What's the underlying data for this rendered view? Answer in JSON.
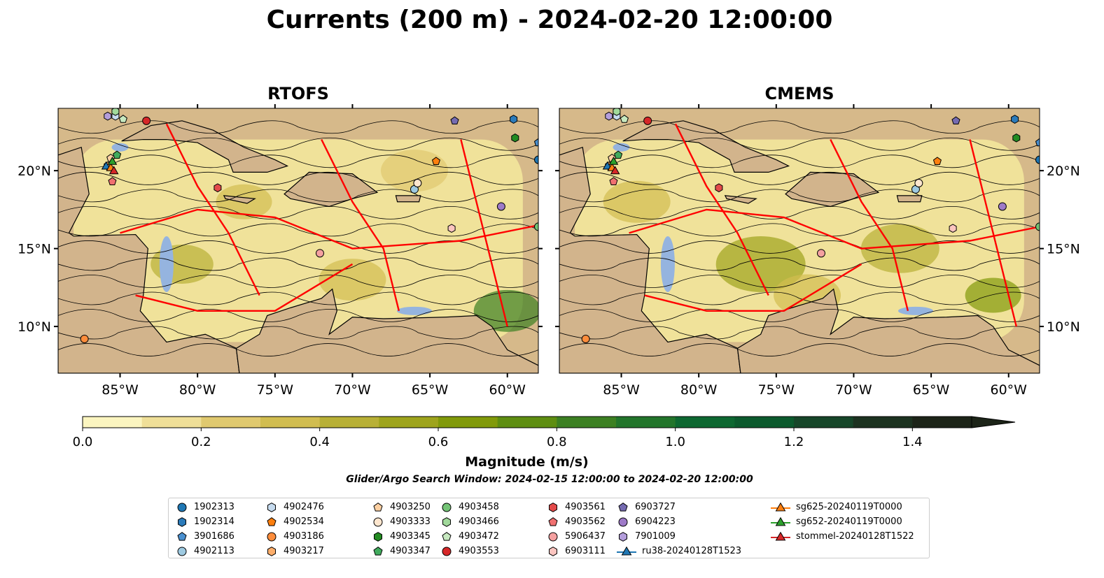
{
  "title": "Currents (200 m) - 2024-02-20 12:00:00",
  "panels": [
    {
      "title": "RTOFS"
    },
    {
      "title": "CMEMS"
    }
  ],
  "chart_data": {
    "type": "heatmap",
    "title": "Currents (200 m) - 2024-02-20 12:00:00",
    "map_extent": {
      "lon": [
        -89,
        -58
      ],
      "lat": [
        7,
        24
      ]
    },
    "x_ticks": [
      {
        "value": -85,
        "label": "85°W"
      },
      {
        "value": -80,
        "label": "80°W"
      },
      {
        "value": -75,
        "label": "75°W"
      },
      {
        "value": -70,
        "label": "70°W"
      },
      {
        "value": -65,
        "label": "65°W"
      },
      {
        "value": -60,
        "label": "60°W"
      }
    ],
    "y_ticks": [
      {
        "value": 10,
        "label": "10°N"
      },
      {
        "value": 15,
        "label": "15°N"
      },
      {
        "value": 20,
        "label": "20°N"
      }
    ],
    "colorbar": {
      "label": "Magnitude (m/s)",
      "range": [
        0,
        1.5
      ],
      "extend": "max",
      "ticks": [
        "0.0",
        "0.2",
        "0.4",
        "0.6",
        "0.8",
        "1.0",
        "1.2",
        "1.4"
      ],
      "colors": [
        "#fbf5c0",
        "#efdf98",
        "#e0c96f",
        "#d1bd50",
        "#b8b036",
        "#9ea41c",
        "#819a0a",
        "#5e8e11",
        "#3c8022",
        "#22752b",
        "#0d6831",
        "#0b5a2d",
        "#164629",
        "#1c3220",
        "#1c2418"
      ]
    }
  },
  "search_window": "Glider/Argo Search Window: 2024-02-15 12:00:00 to 2024-02-20 12:00:00",
  "legend": [
    {
      "label": "1902313",
      "shape": "circle",
      "color": "#1f77b4",
      "lon": -58,
      "lat": 20.7
    },
    {
      "label": "1902314",
      "shape": "hexagon",
      "color": "#2b7bba",
      "lon": -59.6,
      "lat": 23.3
    },
    {
      "label": "3901686",
      "shape": "pentagon",
      "color": "#4a90d0",
      "lon": -58,
      "lat": 21.8
    },
    {
      "label": "4902113",
      "shape": "circle",
      "color": "#9ecae1",
      "lon": -66,
      "lat": 18.8
    },
    {
      "label": "4902476",
      "shape": "hexagon",
      "color": "#c6dbef",
      "lon": -85.3,
      "lat": 23.5
    },
    {
      "label": "4902534",
      "shape": "pentagon",
      "color": "#fd7f0e",
      "lon": -64.6,
      "lat": 20.6
    },
    {
      "label": "4903186",
      "shape": "circle",
      "color": "#fd8d3c",
      "lon": -87.3,
      "lat": 9.2
    },
    {
      "label": "4903217",
      "shape": "hexagon",
      "color": "#fdae6b",
      "lon": -85.8,
      "lat": 20.3
    },
    {
      "label": "4903250",
      "shape": "pentagon",
      "color": "#fdd0a2",
      "lon": -85.6,
      "lat": 20.8
    },
    {
      "label": "4903333",
      "shape": "circle",
      "color": "#fee6ce",
      "lon": -65.8,
      "lat": 19.2
    },
    {
      "label": "4903345",
      "shape": "hexagon",
      "color": "#238b22",
      "lon": -59.5,
      "lat": 22.1
    },
    {
      "label": "4903347",
      "shape": "pentagon",
      "color": "#41ab5d",
      "lon": -85.2,
      "lat": 21
    },
    {
      "label": "4903458",
      "shape": "circle",
      "color": "#74c476",
      "lon": -58,
      "lat": 16.4
    },
    {
      "label": "4903466",
      "shape": "hexagon",
      "color": "#a1d99b",
      "lon": -85.3,
      "lat": 23.8
    },
    {
      "label": "4903472",
      "shape": "pentagon",
      "color": "#c7e9c0",
      "lon": -84.8,
      "lat": 23.3
    },
    {
      "label": "4903553",
      "shape": "circle",
      "color": "#d62728",
      "lon": -83.3,
      "lat": 23.2
    },
    {
      "label": "4903561",
      "shape": "hexagon",
      "color": "#e34a4a",
      "lon": -78.7,
      "lat": 18.9
    },
    {
      "label": "4903562",
      "shape": "pentagon",
      "color": "#f07070",
      "lon": -85.5,
      "lat": 19.3
    },
    {
      "label": "5906437",
      "shape": "circle",
      "color": "#f4a0a0",
      "lon": -72.1,
      "lat": 14.7
    },
    {
      "label": "6903111",
      "shape": "hexagon",
      "color": "#fcc5c0",
      "lon": -63.6,
      "lat": 16.3
    },
    {
      "label": "6903727",
      "shape": "pentagon",
      "color": "#756bb1",
      "lon": -63.4,
      "lat": 23.2
    },
    {
      "label": "6904223",
      "shape": "circle",
      "color": "#9e7ac8",
      "lon": -60.4,
      "lat": 17.7
    },
    {
      "label": "7901009",
      "shape": "hexagon",
      "color": "#b39ddb",
      "lon": -85.8,
      "lat": 23.5
    },
    {
      "label": "ru38-20240128T1523",
      "shape": "triangle",
      "line": true,
      "color": "#1f77b4",
      "lon": -85.9,
      "lat": 20.3
    },
    {
      "label": "sg625-20240119T0000",
      "shape": "triangle",
      "line": true,
      "color": "#ff7f0e",
      "lon": -85.6,
      "lat": 20.2
    },
    {
      "label": "sg652-20240119T0000",
      "shape": "triangle",
      "line": true,
      "color": "#2ca02c",
      "lon": -85.5,
      "lat": 20.6
    },
    {
      "label": "stommel-20240128T1522",
      "shape": "triangle",
      "line": true,
      "color": "#d62728",
      "lon": -85.4,
      "lat": 20
    }
  ]
}
